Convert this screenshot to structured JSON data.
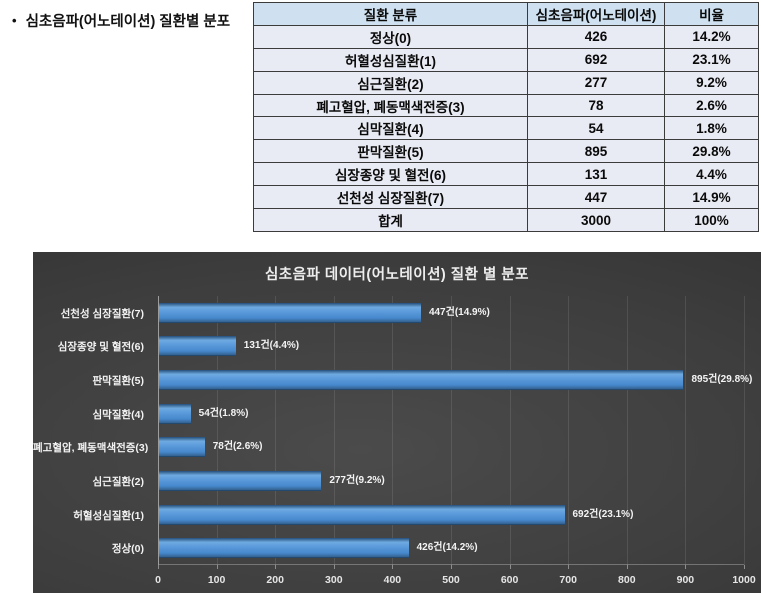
{
  "page": {
    "bullet": "•",
    "bullet_title": "심초음파(어노테이션) 질환별 분포"
  },
  "table": {
    "headers": [
      "질환 분류",
      "심초음파(어노테이션)",
      "비율"
    ],
    "rows": [
      [
        "정상(0)",
        "426",
        "14.2%"
      ],
      [
        "허혈성심질환(1)",
        "692",
        "23.1%"
      ],
      [
        "심근질환(2)",
        "277",
        "9.2%"
      ],
      [
        "폐고혈압, 폐동맥색전증(3)",
        "78",
        "2.6%"
      ],
      [
        "심막질환(4)",
        "54",
        "1.8%"
      ],
      [
        "판막질환(5)",
        "895",
        "29.8%"
      ],
      [
        "심장종양 및 혈전(6)",
        "131",
        "4.4%"
      ],
      [
        "선천성 심장질환(7)",
        "447",
        "14.9%"
      ],
      [
        "합계",
        "3000",
        "100%"
      ]
    ],
    "colors": {
      "header_bg": "#cfe1f1",
      "row_bg": "#e9ebf4",
      "border": "#3b3b3b"
    }
  },
  "chart_data": {
    "type": "bar",
    "orientation": "horizontal",
    "title": "심초음파 데이터(어노테이션) 질환 별 분포",
    "categories": [
      "선천성 심장질환(7)",
      "심장종양 및 혈전(6)",
      "판막질환(5)",
      "심막질환(4)",
      "폐고혈압, 폐동맥색전증(3)",
      "심근질환(2)",
      "허혈성심질환(1)",
      "정상(0)"
    ],
    "values": [
      447,
      131,
      895,
      54,
      78,
      277,
      692,
      426
    ],
    "data_labels": [
      "447건(14.9%)",
      "131건(4.4%)",
      "895건(29.8%)",
      "54건(1.8%)",
      "78건(2.6%)",
      "277건(9.2%)",
      "692건(23.1%)",
      "426건(14.2%)"
    ],
    "xlabel": "",
    "ylabel": "",
    "xlim": [
      0,
      1000
    ],
    "x_ticks": [
      0,
      100,
      200,
      300,
      400,
      500,
      600,
      700,
      800,
      900,
      1000
    ],
    "grid": true,
    "legend": false,
    "bar_color": "#5596d6",
    "background_theme": "dark"
  }
}
